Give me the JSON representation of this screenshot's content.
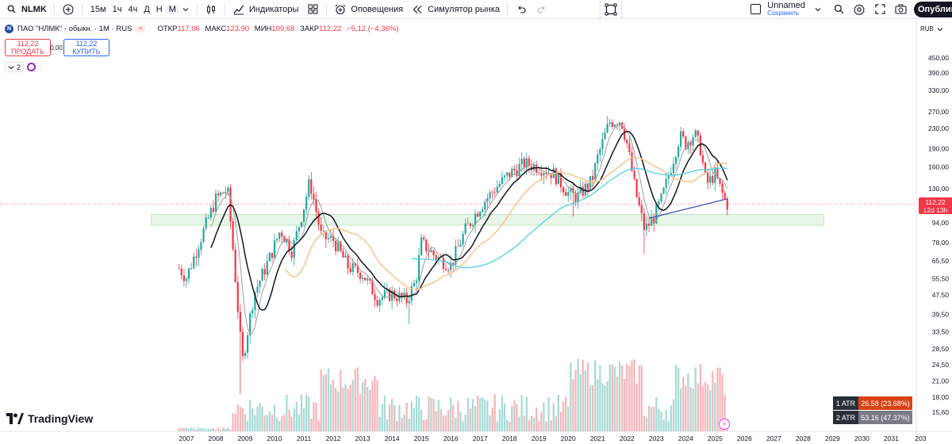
{
  "toolbar": {
    "symbol": "NLMK",
    "intervals": [
      "15м",
      "1ч",
      "4ч",
      "Д",
      "Н",
      "М"
    ],
    "active_interval": "М",
    "indicators_label": "Индикаторы",
    "alerts_label": "Оповещения",
    "replay_label": "Симулятор рынка",
    "layout_name": "Unnamed",
    "layout_status": "Сохранить",
    "publish_label": "Опубликовать"
  },
  "legend": {
    "title": "ПАО \"НЛМК\" - обыкн. · 1М · RUS",
    "open_key": "ОТКР",
    "open_val": "117,06",
    "high_key": "МАКС",
    "high_val": "123,90",
    "low_key": "МИН",
    "low_val": "109,68",
    "close_key": "ЗАКР",
    "close_val": "112,22",
    "change": "−5,12 (−4,36%)",
    "logo_letter": "N",
    "flag": "="
  },
  "trade": {
    "sell_price": "112,22",
    "sell_label": "ПРОДАТЬ",
    "spread": "0,00",
    "buy_price": "112,22",
    "buy_label": "КУПИТЬ"
  },
  "indicators_collapse": {
    "count": "2"
  },
  "currency": "RUB",
  "price_axis": [
    "450,00",
    "390,00",
    "330,00",
    "270,00",
    "230,00",
    "190,00",
    "160,00",
    "130,00",
    "94,00",
    "78,00",
    "65,50",
    "55,50",
    "47,50",
    "39,50",
    "33,50",
    "28,50",
    "24,50",
    "21,00",
    "18,00",
    "15,60"
  ],
  "time_axis": [
    "2007",
    "2008",
    "2009",
    "2010",
    "2011",
    "2012",
    "2013",
    "2014",
    "2015",
    "2016",
    "2017",
    "2018",
    "2019",
    "2020",
    "2021",
    "2022",
    "2023",
    "2024",
    "2025",
    "2026",
    "2027",
    "2028",
    "2029",
    "2030",
    "2031",
    "203"
  ],
  "last_price": {
    "value": "112,22",
    "countdown": "12d 13h"
  },
  "atr": [
    {
      "label": "1 ATR",
      "value": "26.58 (23.68%)",
      "color": "#d84315"
    },
    {
      "label": "2 ATR",
      "value": "53.16 (47.37%)",
      "color": "#787b86"
    }
  ],
  "brand": "TradingView",
  "colors": {
    "up": "#26a69a",
    "down": "#f23645",
    "ma_black": "#131722",
    "ma_orange": "#f7c58d",
    "ma_teal": "#4dd0e1",
    "ma_blue": "#3f51b5"
  },
  "chart_data": {
    "type": "candlestick",
    "title": "ПАО \"НЛМК\" - обыкн. · 1М · RUS",
    "y_scale": "log",
    "ylim": [
      15.6,
      450
    ],
    "x_range": [
      2006.2,
      2032.2
    ],
    "zone": {
      "y": [
        92,
        102
      ],
      "x": [
        2005.8,
        2028.7
      ]
    },
    "candles_yearly_closes": [
      [
        2006.7,
        62
      ],
      [
        2007.0,
        56
      ],
      [
        2007.5,
        82
      ],
      [
        2008.0,
        118
      ],
      [
        2008.4,
        130
      ],
      [
        2008.6,
        70
      ],
      [
        2008.9,
        25
      ],
      [
        2009.3,
        48
      ],
      [
        2009.8,
        66
      ],
      [
        2010.2,
        88
      ],
      [
        2010.6,
        72
      ],
      [
        2011.0,
        110
      ],
      [
        2011.2,
        140
      ],
      [
        2011.6,
        82
      ],
      [
        2012.0,
        80
      ],
      [
        2012.5,
        62
      ],
      [
        2013.0,
        58
      ],
      [
        2013.5,
        46
      ],
      [
        2014.0,
        48
      ],
      [
        2014.5,
        45
      ],
      [
        2014.8,
        54
      ],
      [
        2015.0,
        78
      ],
      [
        2015.5,
        68
      ],
      [
        2016.0,
        63
      ],
      [
        2016.5,
        88
      ],
      [
        2017.0,
        110
      ],
      [
        2017.5,
        130
      ],
      [
        2018.0,
        150
      ],
      [
        2018.5,
        165
      ],
      [
        2019.0,
        160
      ],
      [
        2019.5,
        150
      ],
      [
        2020.0,
        125
      ],
      [
        2020.3,
        120
      ],
      [
        2020.8,
        140
      ],
      [
        2021.0,
        175
      ],
      [
        2021.4,
        245
      ],
      [
        2021.8,
        250
      ],
      [
        2022.0,
        200
      ],
      [
        2022.3,
        125
      ],
      [
        2022.6,
        88
      ],
      [
        2022.9,
        98
      ],
      [
        2023.2,
        120
      ],
      [
        2023.5,
        160
      ],
      [
        2023.8,
        215
      ],
      [
        2024.0,
        200
      ],
      [
        2024.3,
        220
      ],
      [
        2024.5,
        190
      ],
      [
        2024.7,
        135
      ],
      [
        2025.0,
        150
      ],
      [
        2025.2,
        128
      ],
      [
        2025.4,
        112.22
      ]
    ]
  }
}
